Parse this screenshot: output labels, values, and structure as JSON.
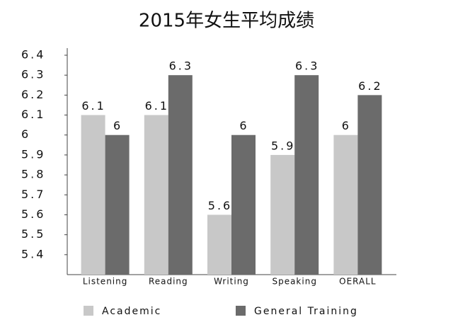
{
  "chart_data": {
    "type": "bar",
    "title": "2015年女生平均成绩",
    "categories": [
      "Listening",
      "Reading",
      "Writing",
      "Speaking",
      "OERALL"
    ],
    "series": [
      {
        "name": "Academic",
        "color": "#c8c8c8",
        "values": [
          6.1,
          6.1,
          5.6,
          5.9,
          6
        ]
      },
      {
        "name": "General Training",
        "color": "#6b6b6b",
        "values": [
          6,
          6.3,
          6,
          6.3,
          6.2
        ]
      }
    ],
    "ylim": [
      5.3,
      6.4
    ],
    "yticks": [
      5.4,
      5.5,
      5.6,
      5.7,
      5.8,
      5.9,
      6,
      6.1,
      6.2,
      6.3,
      6.4
    ]
  }
}
